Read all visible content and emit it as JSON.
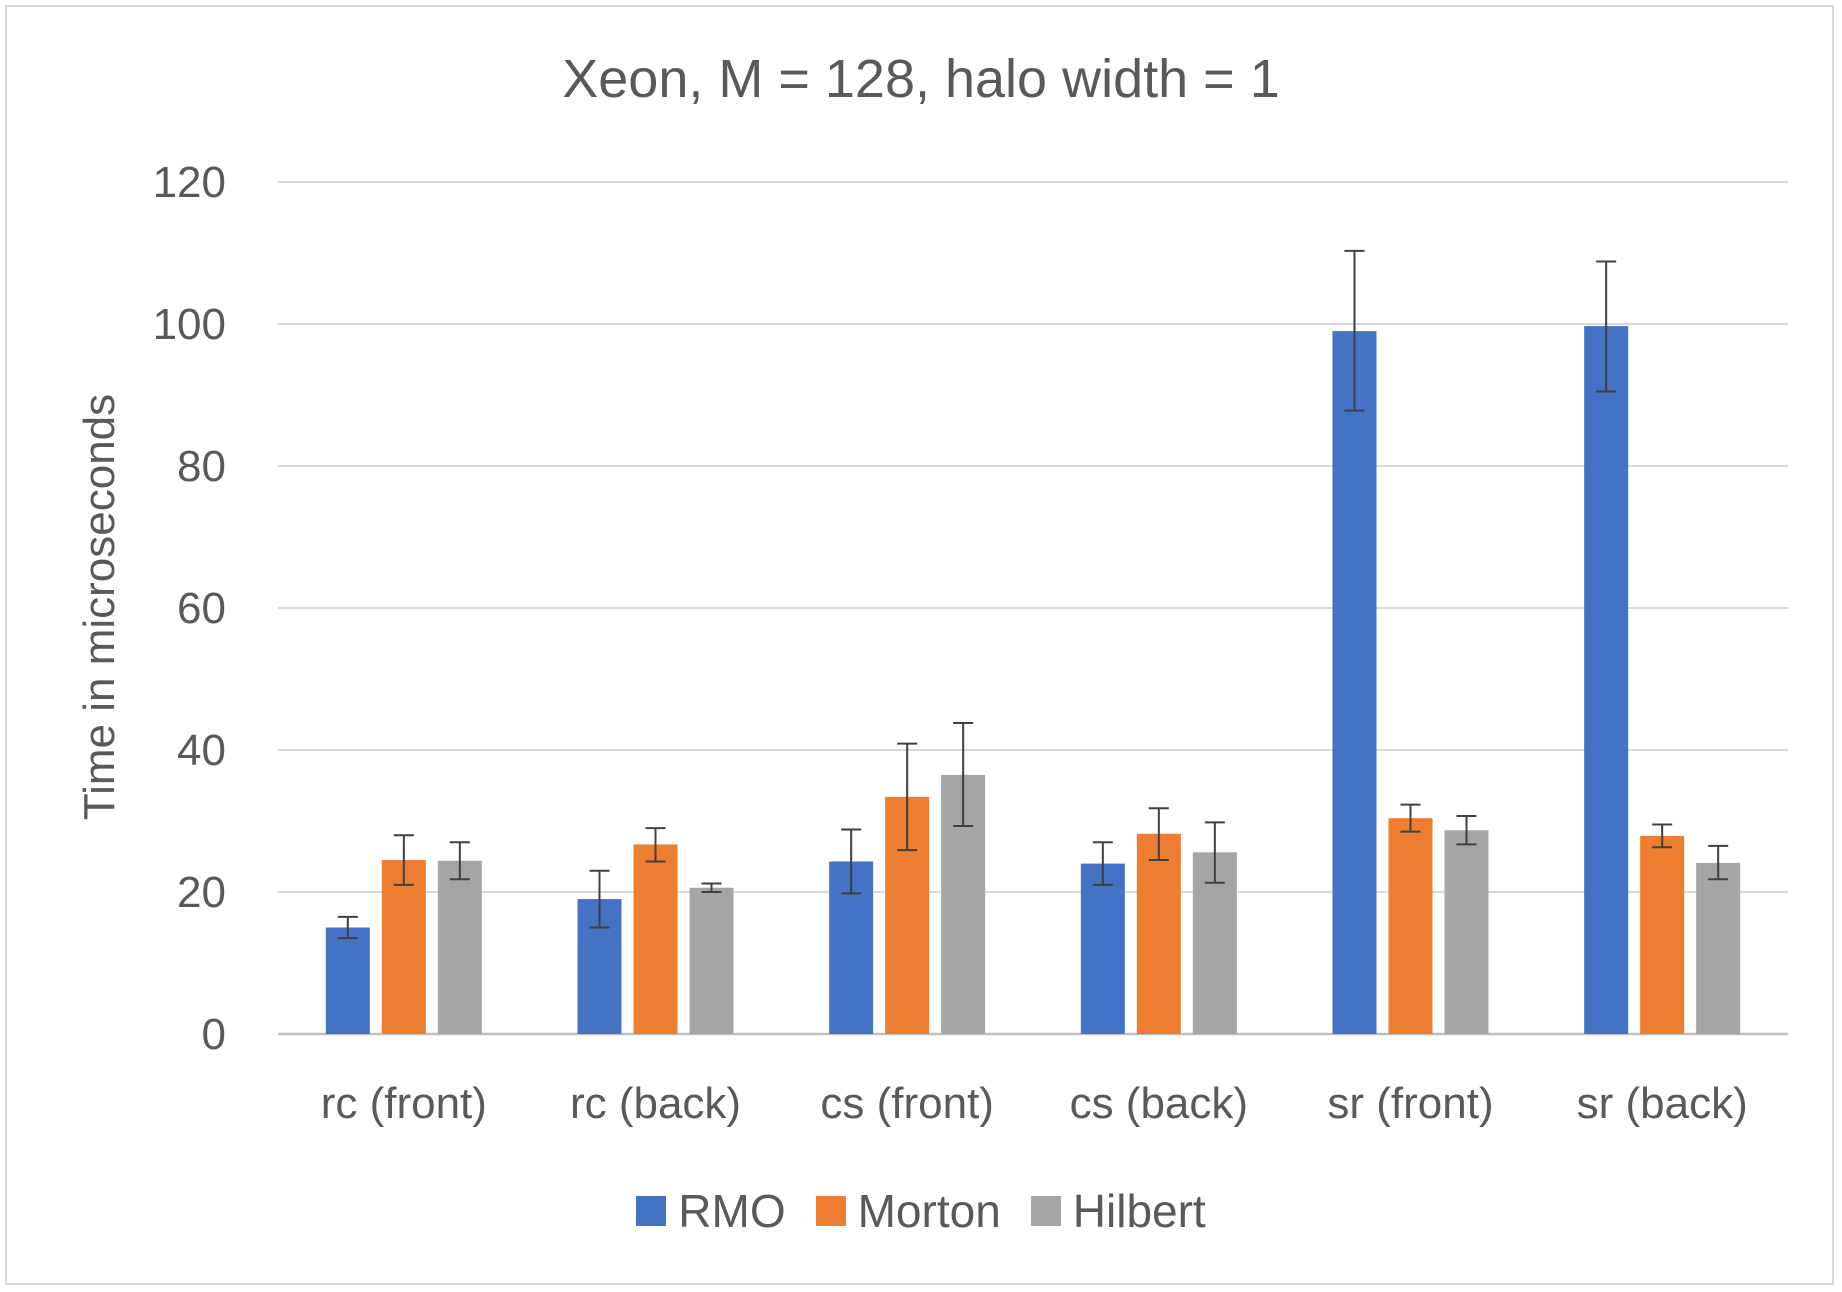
{
  "chart_data": {
    "type": "bar",
    "title": "Xeon, M = 128, halo width = 1",
    "xlabel": "",
    "ylabel": "Time in microseconds",
    "ylim": [
      0,
      120
    ],
    "yticks": [
      0,
      20,
      40,
      60,
      80,
      100,
      120
    ],
    "grid": true,
    "legend_position": "bottom",
    "categories": [
      "rc (front)",
      "rc (back)",
      "cs (front)",
      "cs (back)",
      "sr (front)",
      "sr (back)"
    ],
    "series": [
      {
        "name": "RMO",
        "color": "#4472c4",
        "values": [
          15,
          19,
          24.3,
          24,
          99,
          99.7
        ],
        "error_low": [
          13.5,
          15,
          19.8,
          21,
          87.8,
          90.5
        ],
        "error_high": [
          16.5,
          23,
          28.8,
          27,
          110.3,
          108.8
        ]
      },
      {
        "name": "Morton",
        "color": "#ed7d31",
        "values": [
          24.5,
          26.7,
          33.4,
          28.2,
          30.4,
          27.9
        ],
        "error_low": [
          21,
          24.3,
          25.9,
          24.5,
          28.5,
          26.3
        ],
        "error_high": [
          28,
          29,
          40.9,
          31.8,
          32.3,
          29.5
        ]
      },
      {
        "name": "Hilbert",
        "color": "#a5a5a5",
        "values": [
          24.4,
          20.6,
          36.5,
          25.6,
          28.7,
          24.1
        ],
        "error_low": [
          21.8,
          20,
          29.3,
          21.3,
          26.7,
          21.8
        ],
        "error_high": [
          27,
          21.2,
          43.8,
          29.8,
          30.7,
          26.5
        ]
      }
    ]
  }
}
